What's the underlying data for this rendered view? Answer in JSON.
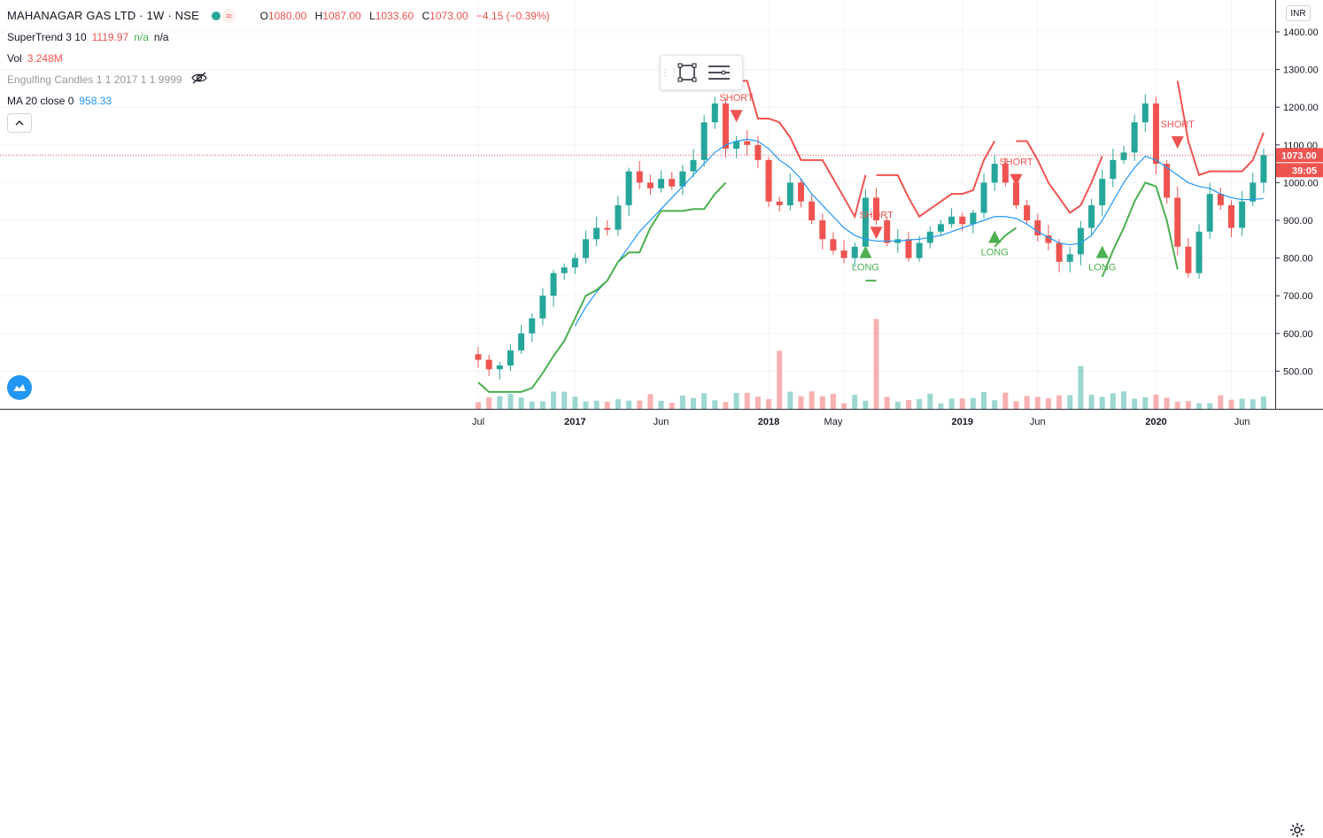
{
  "header": {
    "symbol": "MAHANAGAR GAS LTD · 1W · NSE",
    "wave_glyph": "≈",
    "ohlc": [
      {
        "k": "O",
        "v": "1080.00"
      },
      {
        "k": "H",
        "v": "1087.00"
      },
      {
        "k": "L",
        "v": "1033.60"
      },
      {
        "k": "C",
        "v": "1073.00"
      }
    ],
    "change": "−4.15 (−0.39%)"
  },
  "indicators": {
    "supertrend": {
      "name": "SuperTrend 3 10",
      "value": "1119.97",
      "v2": "n/a",
      "v3": "n/a"
    },
    "volume": {
      "name": "Vol",
      "value": "3.248M"
    },
    "engulfing": {
      "name": "Engulfing Candles 1 1 2017 1 1 9999"
    },
    "ma": {
      "name": "MA 20 close 0",
      "value": "958.33"
    }
  },
  "price_axis": {
    "currency": "INR",
    "current_price": "1073.00",
    "countdown": "39:05"
  },
  "time_labels": [
    "Jul",
    "2017",
    "Jun",
    "2018",
    "May",
    "2019",
    "Jun",
    "2020",
    "Jun"
  ],
  "colors": {
    "up": "#26a69a",
    "down": "#ef5350",
    "ma": "#2196f3",
    "st_up": "#4caf50",
    "st_down": "#ef5350",
    "current": "#ef5350"
  },
  "chart_data": {
    "type": "candlestick",
    "title": "MAHANAGAR GAS LTD · 1W · NSE",
    "ylim": [
      400,
      1400
    ],
    "yticks": [
      500,
      600,
      700,
      800,
      900,
      1000,
      1100,
      1200,
      1300,
      1400
    ],
    "xlabels": [
      "Jul",
      "2017",
      "Jun",
      "2018",
      "May",
      "2019",
      "Jun",
      "2020",
      "Jun"
    ],
    "current_price": 1073,
    "close_series": [
      530,
      505,
      515,
      555,
      600,
      640,
      700,
      760,
      775,
      800,
      850,
      880,
      875,
      940,
      1030,
      1000,
      985,
      1010,
      990,
      1030,
      1060,
      1160,
      1210,
      1090,
      1110,
      1100,
      1060,
      950,
      940,
      1000,
      950,
      900,
      850,
      820,
      800,
      830,
      960,
      900,
      840,
      850,
      800,
      840,
      870,
      890,
      910,
      890,
      920,
      1000,
      1050,
      1000,
      940,
      900,
      860,
      840,
      790,
      810,
      880,
      940,
      1010,
      1060,
      1080,
      1160,
      1210,
      1050,
      960,
      830,
      760,
      870,
      970,
      940,
      880,
      950,
      1000,
      1073
    ],
    "ma20": [
      null,
      null,
      null,
      null,
      null,
      null,
      null,
      null,
      null,
      620,
      670,
      710,
      740,
      790,
      830,
      870,
      900,
      930,
      960,
      990,
      1020,
      1050,
      1080,
      1100,
      1110,
      1115,
      1110,
      1090,
      1060,
      1040,
      1010,
      970,
      940,
      910,
      880,
      860,
      850,
      845,
      845,
      845,
      848,
      850,
      855,
      860,
      870,
      880,
      890,
      900,
      910,
      910,
      905,
      890,
      870,
      855,
      840,
      835,
      840,
      860,
      900,
      950,
      1000,
      1040,
      1070,
      1060,
      1040,
      1020,
      1000,
      990,
      985,
      970,
      960,
      955,
      955,
      958
    ],
    "signals": [
      {
        "label": "SHORT",
        "type": "short",
        "x_index": 24,
        "price": 1160
      },
      {
        "label": "LONG",
        "type": "long",
        "x_index": 36,
        "price": 800
      },
      {
        "label": "SHORT",
        "type": "short",
        "x_index": 37,
        "price": 850
      },
      {
        "label": "LONG",
        "type": "long",
        "x_index": 48,
        "price": 840
      },
      {
        "label": "SHORT",
        "type": "short",
        "x_index": 50,
        "price": 990
      },
      {
        "label": "LONG",
        "type": "long",
        "x_index": 58,
        "price": 800
      },
      {
        "label": "SHORT",
        "type": "short",
        "x_index": 65,
        "price": 1090
      }
    ]
  }
}
